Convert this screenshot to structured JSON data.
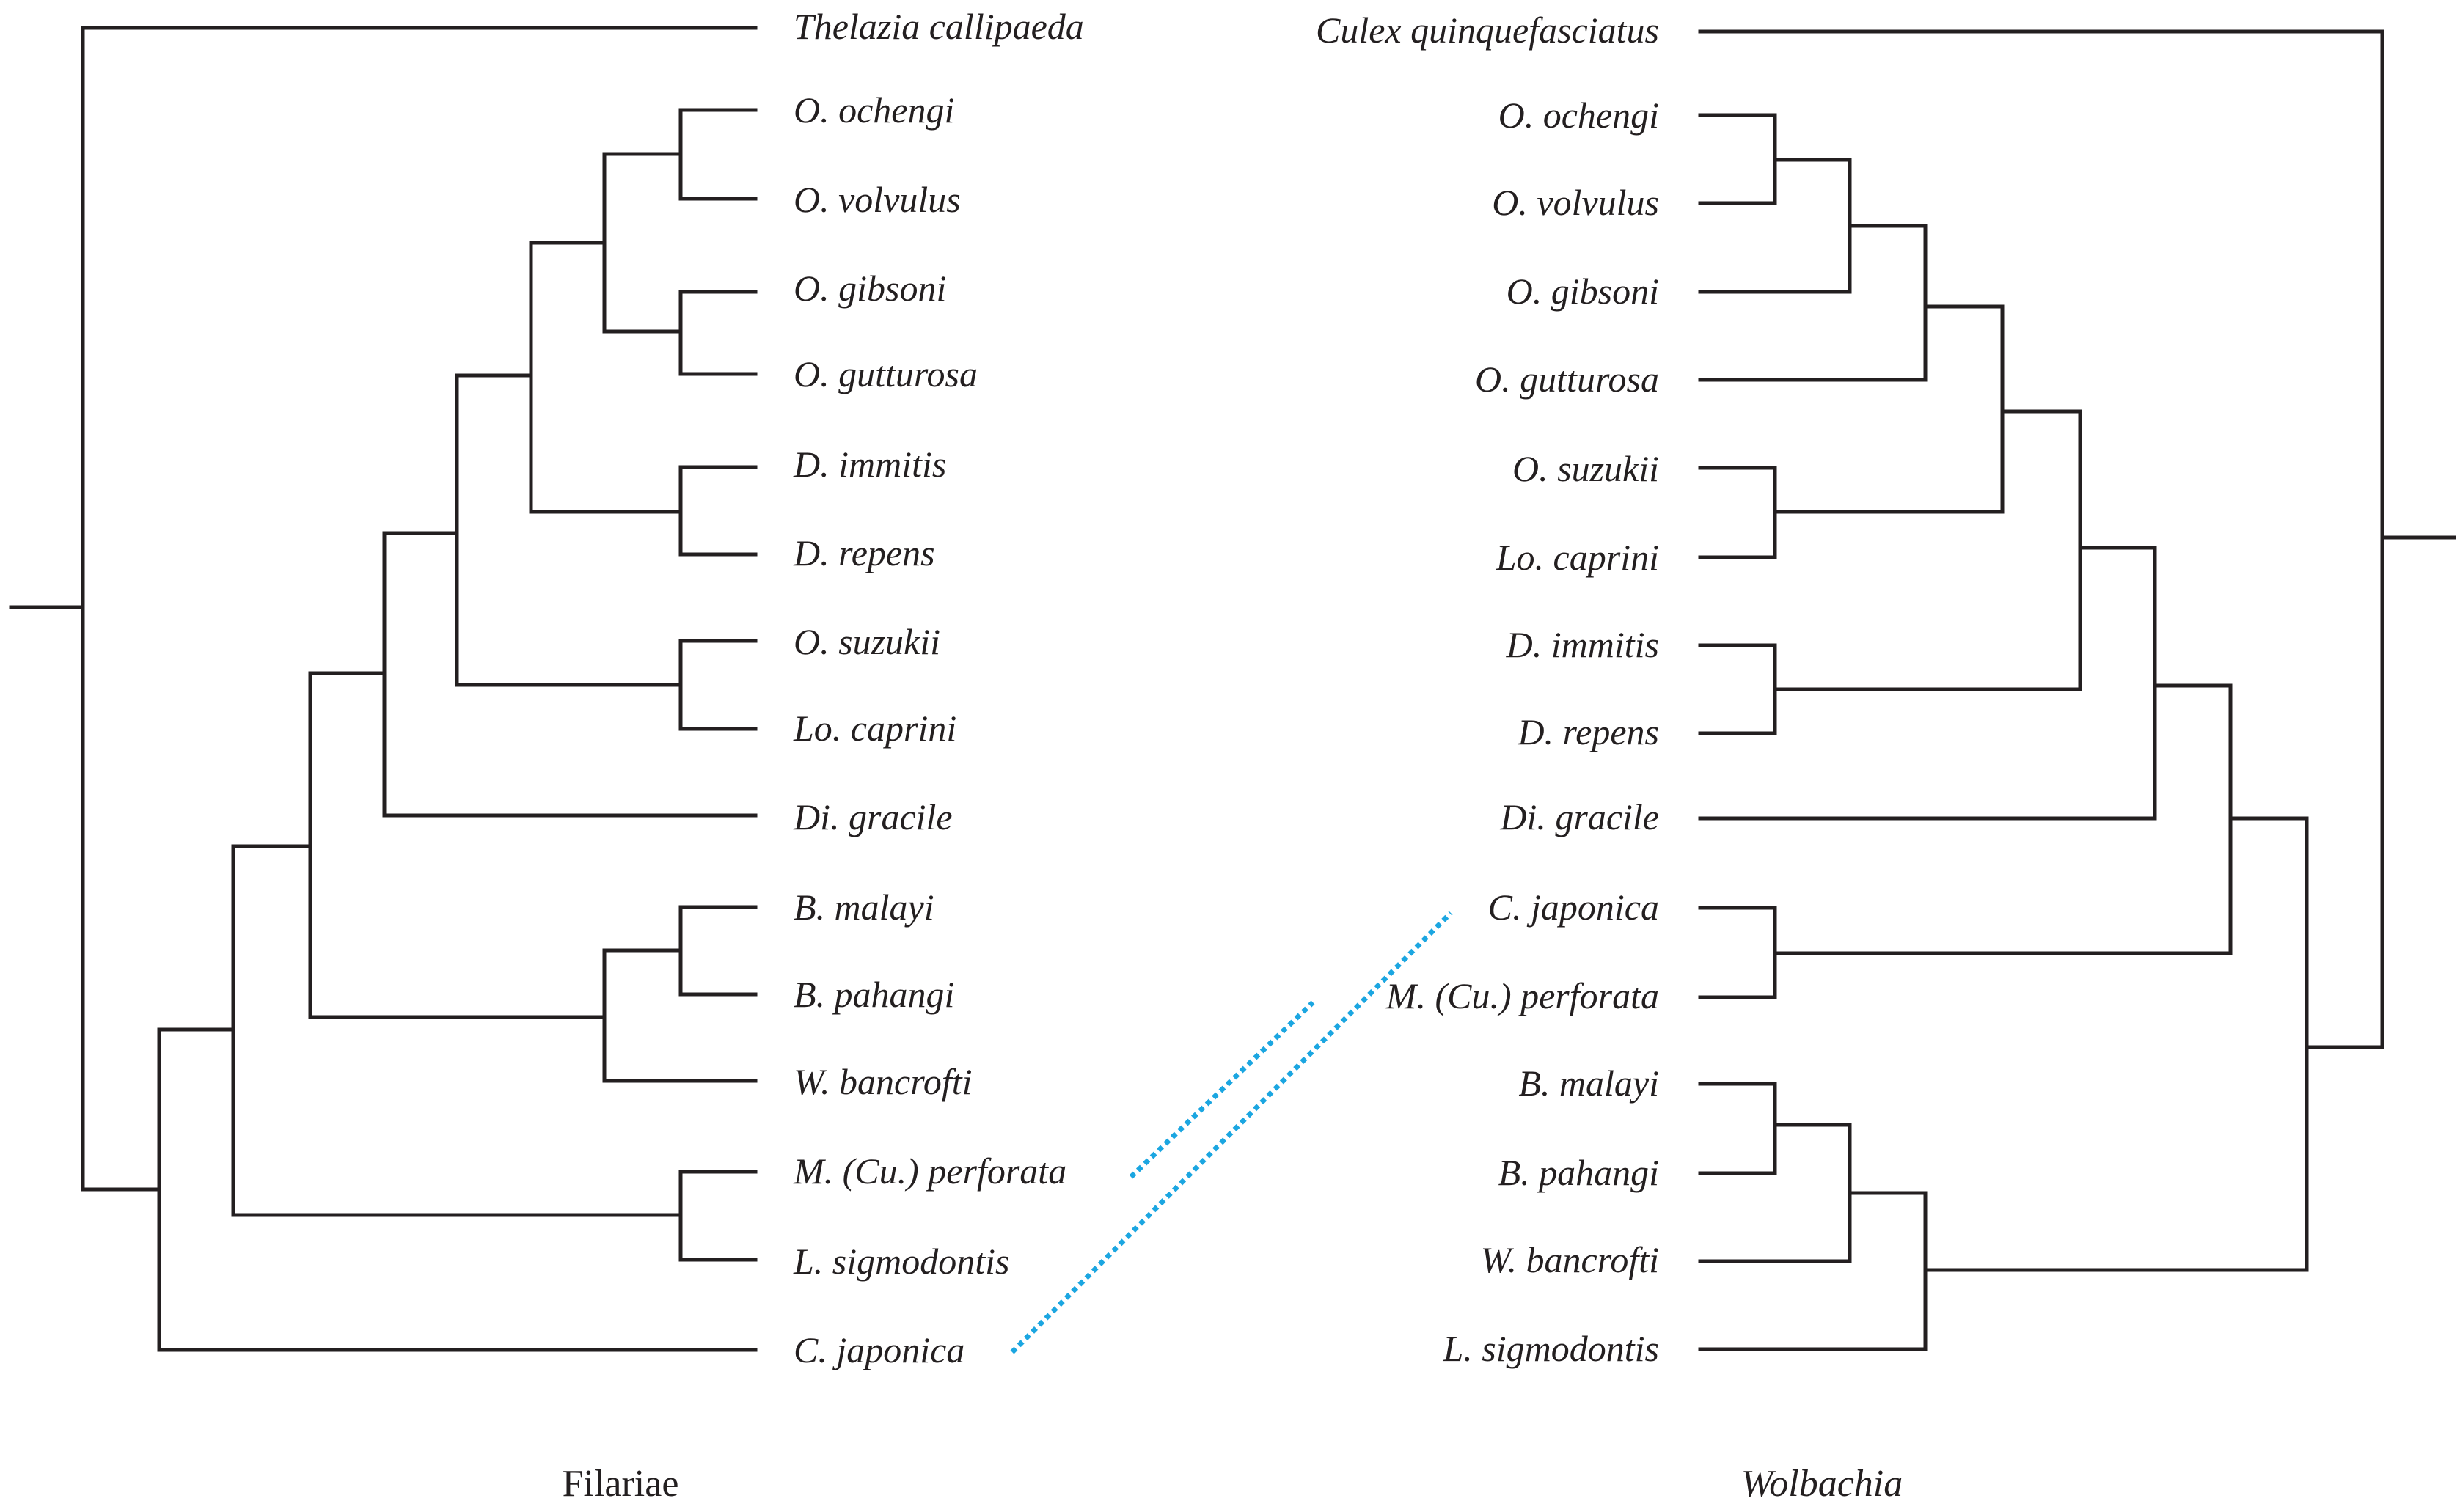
{
  "filariae_tree": {
    "title": "Filariae",
    "taxa": [
      "Thelazia callipaeda",
      "O. ochengi",
      "O. volvulus",
      "O. gibsoni",
      "O. gutturosa",
      "D. immitis",
      "D. repens",
      "O. suzukii",
      "Lo. caprini",
      "Di. gracile",
      "B. malayi",
      "B. pahangi",
      "W. bancrofti",
      "M. (Cu.) perforata",
      "L. sigmodontis",
      "C. japonica"
    ]
  },
  "wolbachia_tree": {
    "title": "Wolbachia",
    "taxa": [
      "Culex quinquefasciatus",
      "O. ochengi",
      "O. volvulus",
      "O. gibsoni",
      "O. gutturosa",
      "O. suzukii",
      "Lo. caprini",
      "D. immitis",
      "D. repens",
      "Di. gracile",
      "C. japonica",
      "M. (Cu.) perforata",
      "B. malayi",
      "B. pahangi",
      "W. bancrofti",
      "L. sigmodontis"
    ]
  },
  "links": [
    {
      "from": "M. (Cu.) perforata",
      "to": "M. (Cu.) perforata"
    },
    {
      "from": "C. japonica",
      "to": "C. japonica"
    }
  ],
  "colors": {
    "tree": "#231f20",
    "link": "#1ba6e1"
  }
}
